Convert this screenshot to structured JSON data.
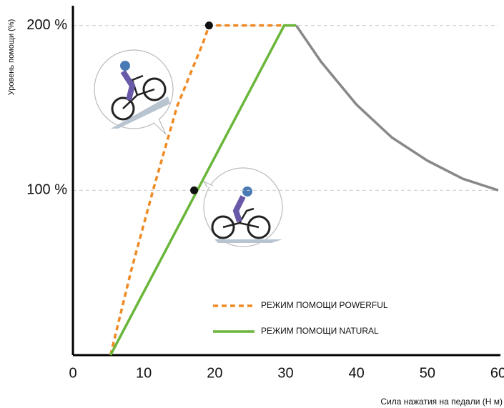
{
  "chart_data": {
    "type": "line",
    "y_label": "Уровень помощи (%)",
    "x_label": "Сила нажатия на педали (Н м)",
    "xlim": [
      0,
      60
    ],
    "xticks": [
      0,
      10,
      20,
      30,
      40,
      50,
      60
    ],
    "ylim": [
      0,
      212
    ],
    "yticks": [
      {
        "value": 100,
        "label": "100 %"
      },
      {
        "value": 200,
        "label": "200 %"
      }
    ],
    "grid": true,
    "series": [
      {
        "name": "РЕЖИМ ПОМОЩИ POWERFUL",
        "color": "#f08a24",
        "dashed": true,
        "x": [
          5.3,
          8.2,
          11.3,
          14.7,
          18.4,
          19.2,
          30
        ],
        "values": [
          0,
          51,
          100,
          151,
          190,
          200,
          200
        ]
      },
      {
        "name": "РЕЖИМ ПОМОЩИ NATURAL",
        "color": "#6ab63a",
        "dashed": false,
        "x": [
          5.3,
          29.8,
          31.5
        ],
        "values": [
          0,
          200,
          200
        ]
      },
      {
        "color": "#888888",
        "dashed": false,
        "x": [
          31.5,
          35,
          40,
          45,
          50,
          55,
          60
        ],
        "values": [
          200,
          178,
          152,
          132,
          118,
          107,
          100
        ]
      }
    ],
    "markers": [
      {
        "x": 19.2,
        "y": 200
      },
      {
        "x": 17.1,
        "y": 100
      }
    ]
  }
}
